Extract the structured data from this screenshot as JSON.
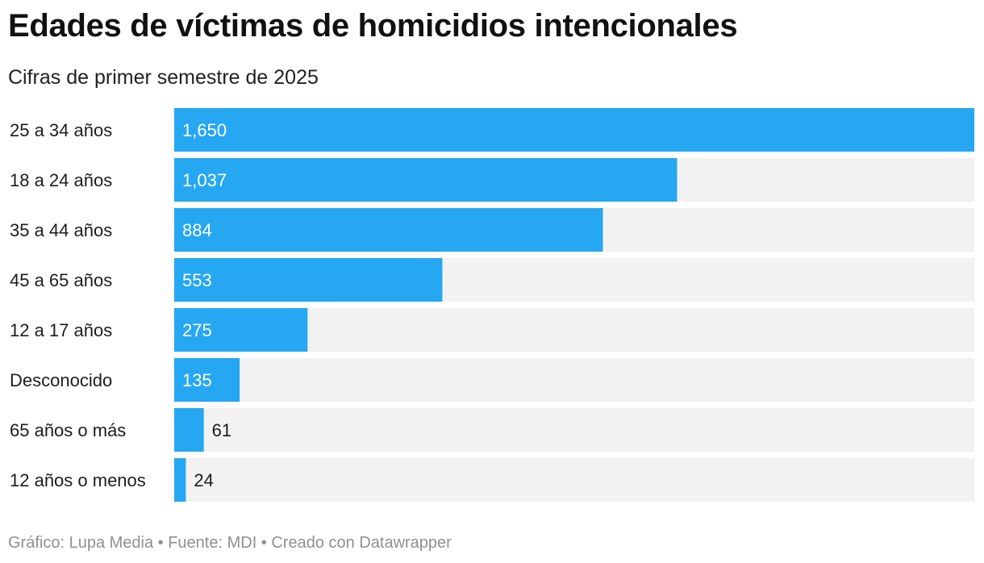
{
  "chart_data": {
    "type": "bar",
    "orientation": "horizontal",
    "title": "Edades de víctimas de homicidios intencionales",
    "subtitle": "Cifras de primer semestre de 2025",
    "categories": [
      "25 a 34 años",
      "18 a 24 años",
      "35 a 44 años",
      "45 a 65 años",
      "12 a 17 años",
      "Desconocido",
      "65 años o más",
      "12 años o menos"
    ],
    "values": [
      1650,
      1037,
      884,
      553,
      275,
      135,
      61,
      24
    ],
    "value_labels": [
      "1,650",
      "1,037",
      "884",
      "553",
      "275",
      "135",
      "61",
      "24"
    ],
    "xlim": [
      0,
      1650
    ],
    "xlabel": "",
    "ylabel": ""
  },
  "colors": {
    "bar": "#25a7f2",
    "track": "#f2f2f2",
    "label_inside": "#ffffff",
    "label_outside": "#1d1d1d"
  },
  "footer": "Gráfico: Lupa Media • Fuente: MDI • Creado con Datawrapper"
}
